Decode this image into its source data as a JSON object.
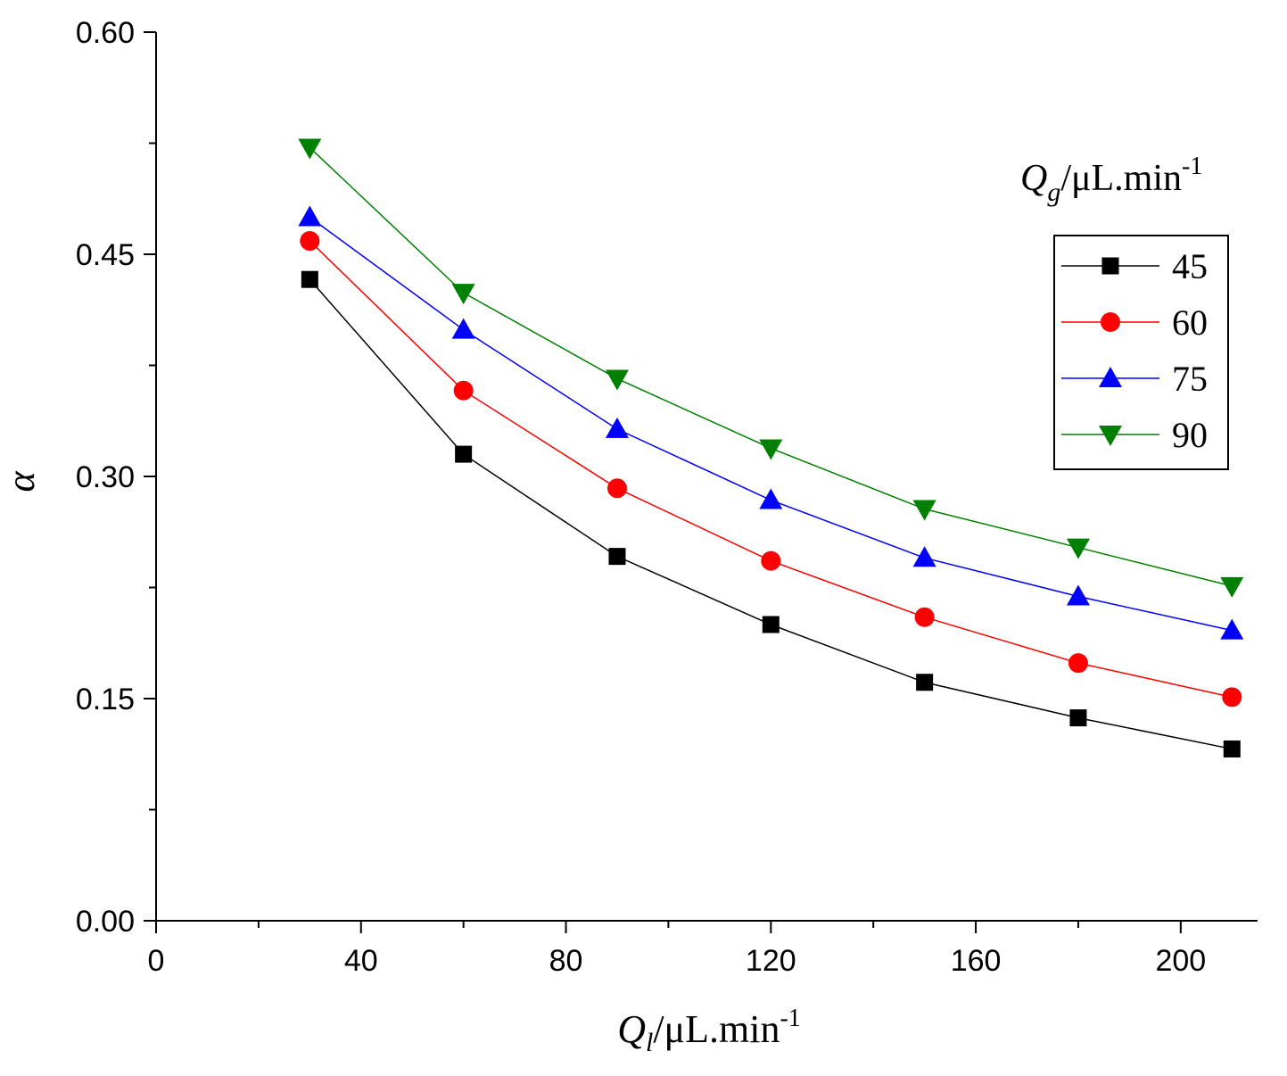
{
  "chart_data": {
    "type": "line",
    "x": [
      30,
      60,
      90,
      120,
      150,
      180,
      210
    ],
    "series": [
      {
        "name": "45",
        "values": [
          0.433,
          0.315,
          0.246,
          0.2,
          0.161,
          0.137,
          0.116
        ],
        "color": "#000000",
        "marker": "square"
      },
      {
        "name": "60",
        "values": [
          0.459,
          0.358,
          0.292,
          0.243,
          0.205,
          0.174,
          0.151
        ],
        "color": "#ff0000",
        "marker": "circle"
      },
      {
        "name": "75",
        "values": [
          0.475,
          0.399,
          0.332,
          0.284,
          0.245,
          0.219,
          0.196
        ],
        "color": "#0000ff",
        "marker": "triangle-up"
      },
      {
        "name": "90",
        "values": [
          0.522,
          0.424,
          0.366,
          0.319,
          0.278,
          0.252,
          0.226
        ],
        "color": "#008000",
        "marker": "triangle-down"
      }
    ],
    "xlabel_main": "Q",
    "xlabel_sub": "l",
    "xlabel_unit": "/μL.min",
    "xlabel_exp": "-1",
    "ylabel": "α",
    "xlim": [
      0,
      215
    ],
    "ylim": [
      0,
      0.6
    ],
    "xticks": [
      "0",
      "40",
      "80",
      "120",
      "160",
      "200"
    ],
    "yticks": [
      "0.00",
      "0.15",
      "0.30",
      "0.45",
      "0.60"
    ],
    "legend_title_main": "Q",
    "legend_title_sub": "g",
    "legend_title_unit": "/μL.min",
    "legend_title_exp": "-1",
    "legend_position": "top-right",
    "grid": false
  }
}
